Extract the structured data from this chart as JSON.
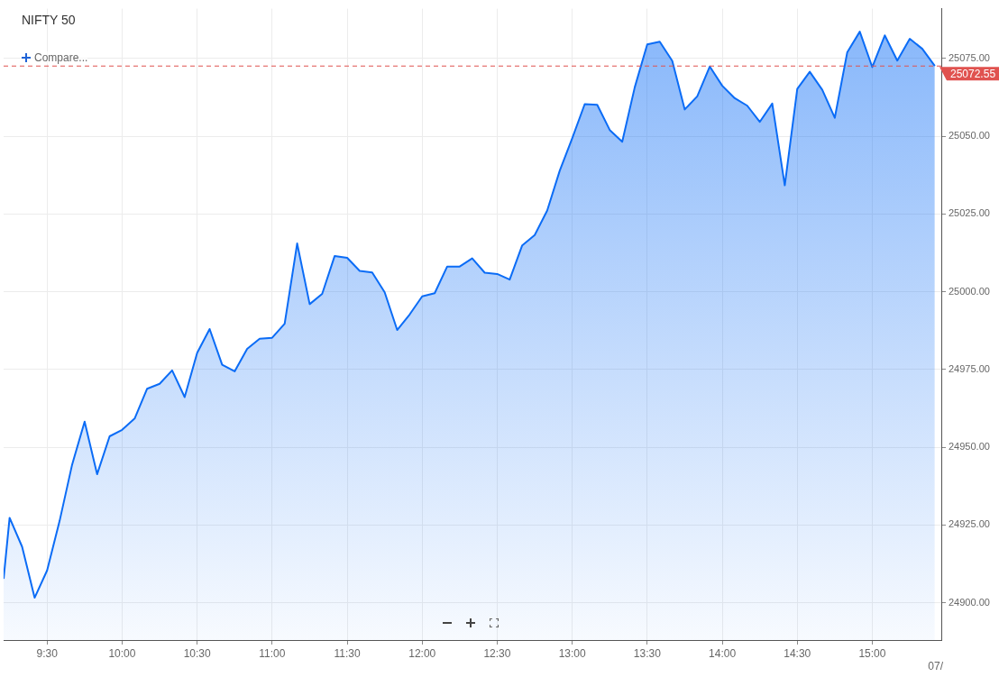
{
  "chart_data": {
    "type": "area",
    "title": "NIFTY 50",
    "x": [
      9.21,
      9.25,
      9.3333,
      9.4167,
      9.5,
      9.5833,
      9.6667,
      9.75,
      9.8333,
      9.9167,
      10,
      10.0833,
      10.1667,
      10.25,
      10.3333,
      10.4167,
      10.5,
      10.5833,
      10.6667,
      10.75,
      10.8333,
      10.9167,
      11,
      11.0833,
      11.1667,
      11.25,
      11.3333,
      11.4167,
      11.5,
      11.5833,
      11.6667,
      11.75,
      11.8333,
      11.9167,
      12,
      12.0833,
      12.1667,
      12.25,
      12.3333,
      12.4167,
      12.5,
      12.5833,
      12.6667,
      12.75,
      12.8333,
      12.9167,
      13,
      13.0833,
      13.1667,
      13.25,
      13.3333,
      13.4167,
      13.5,
      13.5833,
      13.6667,
      13.75,
      13.8333,
      13.9167,
      14,
      14.0833,
      14.1667,
      14.25,
      14.3333,
      14.4167,
      14.5,
      14.5833,
      14.6667,
      14.75,
      14.8333,
      14.9167,
      15,
      15.0833,
      15.1667,
      15.25,
      15.3333,
      15.4167
    ],
    "series": [
      {
        "color": "#0b6cf6",
        "values": [
          24907.7,
          24927.3,
          24918.0,
          24901.6,
          24910.4,
          24926.3,
          24944.4,
          24958.2,
          24941.3,
          24953.5,
          24955.6,
          24959.2,
          24968.8,
          24970.4,
          24974.7,
          24966.1,
          24980.3,
          24988.0,
          24976.5,
          24974.4,
          24981.6,
          24984.9,
          24985.2,
          24989.7,
          25015.5,
          24996.0,
          24999.3,
          25011.5,
          25010.9,
          25006.7,
          25006.2,
          24999.8,
          24987.7,
          24992.7,
          24998.5,
          24999.5,
          25008.1,
          25008.1,
          25010.7,
          25006.1,
          25005.7,
          25003.9,
          25014.9,
          25018.2,
          25026.1,
          25038.9,
          25049.3,
          25060.3,
          25060.1,
          25052.0,
          25048.2,
          25065.7,
          25079.5,
          25080.4,
          25074.2,
          25058.6,
          25062.8,
          25072.4,
          25066.2,
          25062.2,
          25059.8,
          25054.6,
          25060.5,
          25034.2,
          25065.2,
          25070.7,
          25064.9,
          25055.9,
          25077.0,
          25083.6,
          25072.2,
          25082.4,
          25074.3,
          25081.3,
          25078.1,
          25072.6
        ]
      }
    ],
    "xlim": [
      9.21,
      15.46
    ],
    "xticks": [
      {
        "value": 9.5,
        "label": "9:30"
      },
      {
        "value": 10,
        "label": "10:00"
      },
      {
        "value": 10.5,
        "label": "10:30"
      },
      {
        "value": 11,
        "label": "11:00"
      },
      {
        "value": 11.5,
        "label": "11:30"
      },
      {
        "value": 12,
        "label": "12:00"
      },
      {
        "value": 12.5,
        "label": "12:30"
      },
      {
        "value": 13,
        "label": "13:00"
      },
      {
        "value": 13.5,
        "label": "13:30"
      },
      {
        "value": 14,
        "label": "14:00"
      },
      {
        "value": 14.5,
        "label": "14:30"
      },
      {
        "value": 15,
        "label": "15:00"
      }
    ],
    "ylim": [
      24888,
      25091
    ],
    "yticks": [
      {
        "value": 24900,
        "label": "24900.00"
      },
      {
        "value": 24925,
        "label": "24925.00"
      },
      {
        "value": 24950,
        "label": "24950.00"
      },
      {
        "value": 24975,
        "label": "24975.00"
      },
      {
        "value": 25000,
        "label": "25000.00"
      },
      {
        "value": 25025,
        "label": "25025.00"
      },
      {
        "value": 25050,
        "label": "25050.00"
      },
      {
        "value": 25075,
        "label": "25075.00"
      }
    ],
    "ref_lines": [
      {
        "axis": "y",
        "value": 25072.55,
        "label": "25072.55",
        "color": "#e0524f",
        "line_style": "dashed"
      }
    ],
    "annotations": [
      "Compare...",
      "07/"
    ],
    "grid": true,
    "legend": false,
    "marker": "none",
    "line_style": "solid"
  }
}
